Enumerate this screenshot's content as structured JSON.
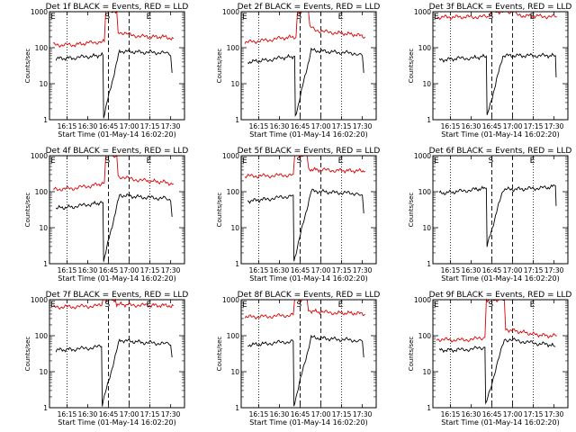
{
  "chart_data": {
    "type": "line",
    "x_ticks": [
      "16:15",
      "16:30",
      "16:45",
      "17:00",
      "17:15",
      "17:30"
    ],
    "x_tick_minutes": [
      15,
      30,
      45,
      60,
      75,
      90
    ],
    "x_range_minutes_after_start": [
      2.33,
      100
    ],
    "xlabel": "Start Time (01-May-14 16:02:20)",
    "ylabel": "Counts/sec",
    "y_scale": "log",
    "ylim": [
      1,
      1000
    ],
    "y_ticks": [
      "1",
      "10",
      "100",
      "1000"
    ],
    "dotted_line_minutes": [
      15,
      75
    ],
    "dashed_line_minutes": [
      45,
      60
    ],
    "marker_labels": [
      "E",
      "S",
      "E"
    ],
    "colors": {
      "events": "#000000",
      "lld": "#dd0000"
    },
    "panels": [
      {
        "title": "Det 1f  BLACK = Events, RED = LLD",
        "lld": [
          [
            5,
            120
          ],
          [
            20,
            120
          ],
          [
            30,
            135
          ],
          [
            42,
            150
          ],
          [
            43,
            1000
          ],
          [
            51,
            1000
          ],
          [
            52,
            280
          ],
          [
            60,
            230
          ],
          [
            72,
            200
          ],
          [
            85,
            200
          ],
          [
            92,
            180
          ]
        ],
        "events": [
          [
            7,
            50
          ],
          [
            20,
            52
          ],
          [
            32,
            58
          ],
          [
            41,
            62
          ],
          [
            41.5,
            1.2
          ],
          [
            53,
            80
          ],
          [
            70,
            75
          ],
          [
            85,
            72
          ],
          [
            90,
            60
          ],
          [
            91,
            20
          ]
        ]
      },
      {
        "title": "Det 2f  BLACK = Events, RED = LLD",
        "lld": [
          [
            5,
            140
          ],
          [
            20,
            160
          ],
          [
            32,
            185
          ],
          [
            42,
            200
          ],
          [
            43,
            1000
          ],
          [
            51,
            1000
          ],
          [
            52,
            380
          ],
          [
            60,
            280
          ],
          [
            72,
            260
          ],
          [
            85,
            230
          ],
          [
            92,
            200
          ]
        ],
        "events": [
          [
            7,
            40
          ],
          [
            20,
            45
          ],
          [
            32,
            52
          ],
          [
            41,
            58
          ],
          [
            41.5,
            1.2
          ],
          [
            53,
            85
          ],
          [
            70,
            75
          ],
          [
            85,
            70
          ],
          [
            90,
            60
          ],
          [
            91,
            20
          ]
        ]
      },
      {
        "title": "Det 3f  BLACK = Events, RED = LLD",
        "lld": [
          [
            5,
            700
          ],
          [
            30,
            720
          ],
          [
            42,
            720
          ],
          [
            45,
            1000
          ],
          [
            62,
            1000
          ],
          [
            63,
            780
          ],
          [
            80,
            750
          ],
          [
            92,
            720
          ]
        ],
        "events": [
          [
            7,
            45
          ],
          [
            20,
            50
          ],
          [
            32,
            52
          ],
          [
            41,
            58
          ],
          [
            41.5,
            1.2
          ],
          [
            53,
            60
          ],
          [
            70,
            60
          ],
          [
            85,
            60
          ],
          [
            91,
            60
          ],
          [
            91.5,
            15
          ]
        ]
      },
      {
        "title": "Det 4f  BLACK = Events, RED = LLD",
        "lld": [
          [
            5,
            115
          ],
          [
            20,
            125
          ],
          [
            32,
            145
          ],
          [
            42,
            175
          ],
          [
            43,
            1000
          ],
          [
            51,
            1000
          ],
          [
            52,
            270
          ],
          [
            60,
            230
          ],
          [
            72,
            200
          ],
          [
            85,
            185
          ],
          [
            92,
            165
          ]
        ],
        "events": [
          [
            7,
            35
          ],
          [
            20,
            38
          ],
          [
            32,
            45
          ],
          [
            41,
            50
          ],
          [
            41.5,
            1.2
          ],
          [
            53,
            80
          ],
          [
            70,
            70
          ],
          [
            85,
            65
          ],
          [
            90,
            55
          ],
          [
            91,
            20
          ]
        ]
      },
      {
        "title": "Det 5f  BLACK = Events, RED = LLD",
        "lld": [
          [
            5,
            270
          ],
          [
            20,
            275
          ],
          [
            32,
            285
          ],
          [
            40,
            300
          ],
          [
            41,
            1000
          ],
          [
            50,
            1000
          ],
          [
            51,
            420
          ],
          [
            60,
            400
          ],
          [
            72,
            390
          ],
          [
            85,
            380
          ],
          [
            92,
            370
          ]
        ],
        "events": [
          [
            7,
            55
          ],
          [
            20,
            62
          ],
          [
            32,
            70
          ],
          [
            40,
            80
          ],
          [
            40.5,
            1.2
          ],
          [
            53,
            105
          ],
          [
            70,
            95
          ],
          [
            85,
            90
          ],
          [
            90,
            80
          ],
          [
            91,
            25
          ]
        ]
      },
      {
        "title": "Det 6f  BLACK = Events, RED = LLD",
        "lld": [],
        "events": [
          [
            7,
            90
          ],
          [
            20,
            100
          ],
          [
            32,
            115
          ],
          [
            41,
            125
          ],
          [
            41.5,
            3
          ],
          [
            53,
            115
          ],
          [
            70,
            120
          ],
          [
            85,
            130
          ],
          [
            91,
            145
          ],
          [
            91.5,
            40
          ]
        ]
      },
      {
        "title": "Det 7f  BLACK = Events, RED = LLD",
        "lld": [
          [
            5,
            620
          ],
          [
            20,
            640
          ],
          [
            32,
            660
          ],
          [
            40,
            680
          ],
          [
            41,
            1000
          ],
          [
            50,
            1000
          ],
          [
            51,
            750
          ],
          [
            60,
            720
          ],
          [
            72,
            700
          ],
          [
            85,
            690
          ],
          [
            92,
            680
          ]
        ],
        "events": [
          [
            7,
            40
          ],
          [
            20,
            42
          ],
          [
            32,
            46
          ],
          [
            40,
            50
          ],
          [
            40.5,
            1.2
          ],
          [
            53,
            75
          ],
          [
            70,
            65
          ],
          [
            85,
            60
          ],
          [
            90,
            55
          ],
          [
            91,
            25
          ]
        ]
      },
      {
        "title": "Det 8f  BLACK = Events, RED = LLD",
        "lld": [
          [
            5,
            330
          ],
          [
            20,
            340
          ],
          [
            32,
            360
          ],
          [
            40,
            380
          ],
          [
            41,
            1000
          ],
          [
            50,
            1000
          ],
          [
            51,
            500
          ],
          [
            60,
            450
          ],
          [
            72,
            430
          ],
          [
            85,
            420
          ],
          [
            92,
            400
          ]
        ],
        "events": [
          [
            7,
            55
          ],
          [
            20,
            60
          ],
          [
            32,
            66
          ],
          [
            40,
            70
          ],
          [
            40.5,
            1.2
          ],
          [
            53,
            90
          ],
          [
            70,
            80
          ],
          [
            85,
            75
          ],
          [
            90,
            70
          ],
          [
            91,
            25
          ]
        ]
      },
      {
        "title": "Det 9f  BLACK = Events, RED = LLD",
        "lld": [
          [
            5,
            80
          ],
          [
            20,
            75
          ],
          [
            32,
            80
          ],
          [
            40,
            90
          ],
          [
            41,
            1000
          ],
          [
            54,
            1000
          ],
          [
            55,
            150
          ],
          [
            65,
            130
          ],
          [
            75,
            110
          ],
          [
            85,
            100
          ],
          [
            92,
            100
          ]
        ],
        "events": [
          [
            7,
            40
          ],
          [
            20,
            40
          ],
          [
            32,
            43
          ],
          [
            40,
            48
          ],
          [
            40.5,
            1.2
          ],
          [
            54,
            80
          ],
          [
            66,
            70
          ],
          [
            78,
            60
          ],
          [
            85,
            58
          ],
          [
            91,
            50
          ]
        ]
      }
    ]
  }
}
